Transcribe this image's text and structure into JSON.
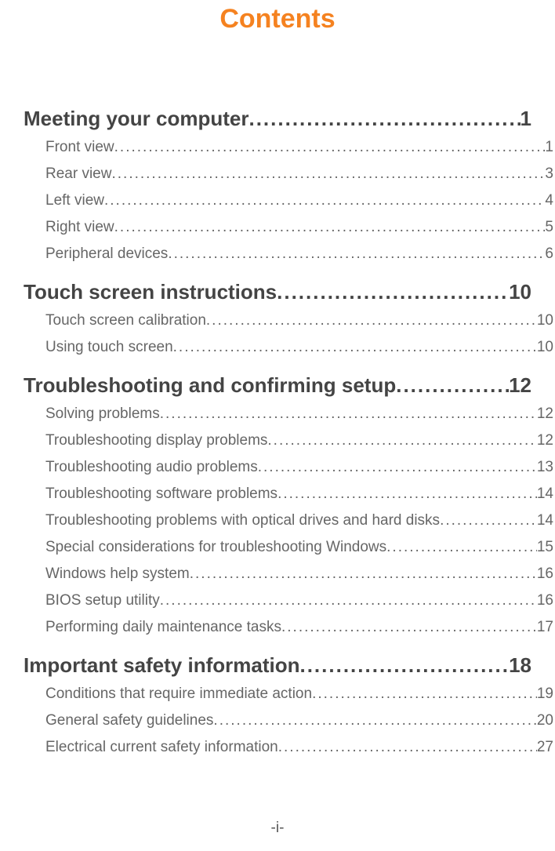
{
  "title": "Contents",
  "title_color": "#f58220",
  "title_fontsize": 34,
  "chapter_color": "#444444",
  "chapter_fontsize": 26,
  "sub_color": "#666666",
  "sub_fontsize": 19,
  "footer": "-i-",
  "footer_color": "#555555",
  "footer_fontsize": 19,
  "sections": [
    {
      "title": "Meeting your computer",
      "page": "1",
      "items": [
        {
          "label": "Front view",
          "page": "1"
        },
        {
          "label": "Rear view",
          "page": "3"
        },
        {
          "label": "Left view",
          "page": "4"
        },
        {
          "label": "Right view",
          "page": "5"
        },
        {
          "label": "Peripheral devices",
          "page": "6"
        }
      ]
    },
    {
      "title": "Touch screen instructions",
      "page": "10",
      "items": [
        {
          "label": "Touch screen calibration",
          "page": "10"
        },
        {
          "label": "Using touch screen",
          "page": "10"
        }
      ]
    },
    {
      "title": "Troubleshooting and confirming setup",
      "page": "12",
      "items": [
        {
          "label": "Solving problems",
          "page": "12"
        },
        {
          "label": "Troubleshooting display problems",
          "page": "12"
        },
        {
          "label": "Troubleshooting audio problems",
          "page": "13"
        },
        {
          "label": "Troubleshooting software problems",
          "page": "14"
        },
        {
          "label": "Troubleshooting problems with optical drives and hard disks",
          "page": "14"
        },
        {
          "label": "Special considerations for troubleshooting Windows",
          "page": "15"
        },
        {
          "label": "Windows help system",
          "page": "16"
        },
        {
          "label": "BIOS setup utility",
          "page": "16"
        },
        {
          "label": "Performing daily maintenance tasks",
          "page": "17"
        }
      ]
    },
    {
      "title": "Important safety information",
      "page": "18",
      "items": [
        {
          "label": "Conditions that require immediate action",
          "page": "19"
        },
        {
          "label": "General safety guidelines",
          "page": "20"
        },
        {
          "label": "Electrical current safety information",
          "page": "27"
        }
      ]
    }
  ]
}
